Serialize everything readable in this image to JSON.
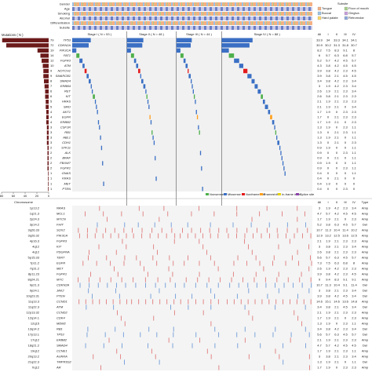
{
  "tracks": {
    "labels": [
      "Gender",
      "Age",
      "Smoking",
      "Alcohol",
      "Differentiation",
      "Subsite"
    ]
  },
  "subsite_legend": {
    "title": "Subsite",
    "items": [
      {
        "label": "Tongue",
        "color": "#f4b183"
      },
      {
        "label": "Floor of mouth",
        "color": "#a9d18e"
      },
      {
        "label": "Buccal",
        "color": "#9dc3e6"
      },
      {
        "label": "Gingiva",
        "color": "#c9a0dc"
      },
      {
        "label": "Hard palate",
        "color": "#ffd966"
      },
      {
        "label": "Retromolar",
        "color": "#8faadc"
      }
    ]
  },
  "mutations": {
    "title": "Mutations ( N )",
    "xlim": [
      0,
      80
    ],
    "xticks": [
      0,
      20,
      40,
      60,
      80
    ],
    "bar_color": "#6b1a1a",
    "stages": [
      {
        "label": "Stage I ( N = 53 )",
        "n": 53
      },
      {
        "label": "Stage II ( N = 48 )",
        "n": 48
      },
      {
        "label": "Stage III ( N = 44 )",
        "n": 44
      },
      {
        "label": "Stage IV ( N = 88 )",
        "n": 88
      }
    ],
    "columns": [
      "All",
      "I",
      "II",
      "III",
      "IV"
    ],
    "legend": [
      {
        "label": "Nonsense",
        "color": "#4daf4a"
      },
      {
        "label": "Missense",
        "color": "#3a6fc4"
      },
      {
        "label": "Nonframeshift",
        "color": "#e41a1c"
      },
      {
        "label": "Frameshift",
        "color": "#ff9f1c"
      },
      {
        "label": "In-frame indel",
        "color": "#e6d200"
      },
      {
        "label": "Splice site",
        "color": "#8e44ad"
      }
    ],
    "genes": [
      {
        "gene": "TP53",
        "count": 79,
        "color": "#3a6fc4",
        "stage_counts": [
          18,
          16,
          15,
          30
        ],
        "pct": [
          33.9,
          34.0,
          33.3,
          34.1,
          34.1
        ]
      },
      {
        "gene": "CDKN2A",
        "count": 72,
        "color": "#3a6fc4",
        "stage_counts": [
          16,
          15,
          14,
          27
        ],
        "pct": [
          30.9,
          30.2,
          31.3,
          31.8,
          30.7
        ]
      },
      {
        "gene": "PIK3CA",
        "count": 19,
        "color": "#3a6fc4",
        "stage_counts": [
          4,
          4,
          4,
          7
        ],
        "pct": [
          8.2,
          7.5,
          8.3,
          9.1,
          8.0
        ]
      },
      {
        "gene": "FAT1",
        "count": 14,
        "color": "#4daf4a",
        "stage_counts": [
          3,
          3,
          3,
          5
        ],
        "pct": [
          6.0,
          5.7,
          6.3,
          6.8,
          5.7
        ]
      },
      {
        "gene": "FGFR3",
        "count": 12,
        "color": "#3a6fc4",
        "stage_counts": [
          3,
          2,
          2,
          5
        ],
        "pct": [
          5.2,
          5.7,
          4.2,
          4.5,
          5.7
        ]
      },
      {
        "gene": "ATM",
        "count": 10,
        "color": "#3a6fc4",
        "stage_counts": [
          2,
          2,
          2,
          4
        ],
        "pct": [
          4.3,
          3.8,
          4.2,
          4.5,
          4.5
        ]
      },
      {
        "gene": "NOTCH1",
        "count": 9,
        "color": "#e41a1c",
        "stage_counts": [
          2,
          2,
          1,
          4
        ],
        "pct": [
          3.9,
          3.8,
          4.2,
          2.3,
          4.5
        ]
      },
      {
        "gene": "SMARCB1",
        "count": 9,
        "color": "#3a6fc4",
        "stage_counts": [
          2,
          1,
          2,
          4
        ],
        "pct": [
          3.9,
          3.8,
          2.1,
          4.5,
          4.5
        ]
      },
      {
        "gene": "SMAD4",
        "count": 8,
        "color": "#3a6fc4",
        "stage_counts": [
          2,
          2,
          1,
          3
        ],
        "pct": [
          3.4,
          3.8,
          4.2,
          2.3,
          3.4
        ]
      },
      {
        "gene": "ERBB4",
        "count": 7,
        "color": "#3a6fc4",
        "stage_counts": [
          1,
          2,
          1,
          3
        ],
        "pct": [
          3.0,
          1.9,
          4.2,
          2.3,
          3.4
        ]
      },
      {
        "gene": "RET",
        "count": 6,
        "color": "#3a6fc4",
        "stage_counts": [
          1,
          1,
          1,
          3
        ],
        "pct": [
          2.6,
          1.9,
          2.1,
          2.3,
          3.4
        ]
      },
      {
        "gene": "KIT",
        "count": 6,
        "color": "#4daf4a",
        "stage_counts": [
          2,
          1,
          1,
          2
        ],
        "pct": [
          2.6,
          3.8,
          2.1,
          2.3,
          2.3
        ]
      },
      {
        "gene": "HRAS",
        "count": 5,
        "color": "#3a6fc4",
        "stage_counts": [
          1,
          1,
          1,
          2
        ],
        "pct": [
          2.1,
          1.9,
          2.1,
          2.3,
          2.3
        ]
      },
      {
        "gene": "SMO",
        "count": 5,
        "color": "#3a6fc4",
        "stage_counts": [
          1,
          1,
          0,
          3
        ],
        "pct": [
          2.1,
          1.9,
          2.1,
          0,
          3.4
        ]
      },
      {
        "gene": "AKT1",
        "count": 4,
        "color": "#3a6fc4",
        "stage_counts": [
          1,
          0,
          1,
          2
        ],
        "pct": [
          1.7,
          1.9,
          0,
          2.3,
          2.3
        ]
      },
      {
        "gene": "EGFR",
        "count": 4,
        "color": "#ff9f1c",
        "stage_counts": [
          0,
          1,
          1,
          2
        ],
        "pct": [
          1.7,
          0,
          2.1,
          2.3,
          2.3
        ]
      },
      {
        "gene": "ERBB2",
        "count": 4,
        "color": "#3a6fc4",
        "stage_counts": [
          1,
          1,
          0,
          2
        ],
        "pct": [
          1.7,
          1.9,
          2.1,
          0,
          2.3
        ]
      },
      {
        "gene": "CSF1R",
        "count": 3,
        "color": "#3a6fc4",
        "stage_counts": [
          1,
          0,
          1,
          1
        ],
        "pct": [
          1.3,
          1.9,
          0,
          2.3,
          1.1
        ]
      },
      {
        "gene": "RB1",
        "count": 3,
        "color": "#4daf4a",
        "stage_counts": [
          0,
          1,
          1,
          1
        ],
        "pct": [
          1.3,
          0,
          2.1,
          2.3,
          1.1
        ]
      },
      {
        "gene": "ABL1",
        "count": 3,
        "color": "#3a6fc4",
        "stage_counts": [
          1,
          1,
          0,
          1
        ],
        "pct": [
          1.3,
          1.9,
          2.1,
          0,
          1.1
        ]
      },
      {
        "gene": "CDH1",
        "count": 3,
        "color": "#3a6fc4",
        "stage_counts": [
          0,
          1,
          0,
          2
        ],
        "pct": [
          1.3,
          0,
          2.1,
          0,
          2.3
        ]
      },
      {
        "gene": "STK11",
        "count": 2,
        "color": "#3a6fc4",
        "stage_counts": [
          1,
          0,
          0,
          1
        ],
        "pct": [
          0.9,
          1.9,
          0,
          0,
          1.1
        ]
      },
      {
        "gene": "ALK",
        "count": 2,
        "color": "#3a6fc4",
        "stage_counts": [
          0,
          0,
          1,
          1
        ],
        "pct": [
          0.9,
          0,
          0,
          2.3,
          1.1
        ]
      },
      {
        "gene": "BRAF",
        "count": 2,
        "color": "#3a6fc4",
        "stage_counts": [
          0,
          1,
          0,
          1
        ],
        "pct": [
          0.9,
          0,
          2.1,
          0,
          1.1
        ]
      },
      {
        "gene": "FBXW7",
        "count": 2,
        "color": "#3a6fc4",
        "stage_counts": [
          1,
          0,
          0,
          1
        ],
        "pct": [
          0.9,
          1.9,
          0,
          0,
          1.1
        ]
      },
      {
        "gene": "FGFR1",
        "count": 2,
        "color": "#3a6fc4",
        "stage_counts": [
          0,
          0,
          1,
          1
        ],
        "pct": [
          0.9,
          0,
          0,
          2.3,
          1.1
        ]
      },
      {
        "gene": "GNAS",
        "count": 1,
        "color": "#3a6fc4",
        "stage_counts": [
          0,
          0,
          0,
          1
        ],
        "pct": [
          0.4,
          0,
          0,
          0,
          1.1
        ]
      },
      {
        "gene": "KRAS",
        "count": 1,
        "color": "#3a6fc4",
        "stage_counts": [
          0,
          1,
          0,
          0
        ],
        "pct": [
          0.4,
          0,
          2.1,
          0,
          0
        ]
      },
      {
        "gene": "MET",
        "count": 1,
        "color": "#3a6fc4",
        "stage_counts": [
          1,
          0,
          0,
          0
        ],
        "pct": [
          0.4,
          1.9,
          0,
          0,
          0
        ]
      },
      {
        "gene": "PTEN",
        "count": 1,
        "color": "#3a6fc4",
        "stage_counts": [
          0,
          0,
          1,
          0
        ],
        "pct": [
          0.4,
          0,
          0,
          2.3,
          0
        ]
      }
    ]
  },
  "cnv": {
    "axis_label": "Chromosome",
    "columns": [
      "All",
      "I",
      "II",
      "III",
      "IV",
      "Type"
    ],
    "colors": {
      "Amp": "#e07b7b",
      "Del": "#6f9bd8"
    },
    "rows": [
      {
        "cytoband": "1p13.2",
        "gene": "NRAS",
        "type": "Amp",
        "stage_counts": [
          1,
          2,
          1,
          3
        ],
        "pct": [
          3.0,
          1.9,
          4.2,
          2.3,
          3.4
        ]
      },
      {
        "cytoband": "1q21.3",
        "gene": "MCL1",
        "type": "Amp",
        "stage_counts": [
          3,
          2,
          2,
          4
        ],
        "pct": [
          4.7,
          5.7,
          4.2,
          4.5,
          4.5
        ]
      },
      {
        "cytoband": "2p24.3",
        "gene": "MYCN",
        "type": "Amp",
        "stage_counts": [
          1,
          1,
          0,
          2
        ],
        "pct": [
          1.7,
          1.9,
          2.1,
          0,
          2.3
        ]
      },
      {
        "cytoband": "3p14.2",
        "gene": "FHIT",
        "type": "Del",
        "stage_counts": [
          2,
          3,
          2,
          5
        ],
        "pct": [
          5.2,
          3.8,
          6.3,
          4.5,
          5.7
        ]
      },
      {
        "cytoband": "3q26.33",
        "gene": "SOX2",
        "type": "Amp",
        "stage_counts": [
          6,
          5,
          5,
          9
        ],
        "pct": [
          10.7,
          11.3,
          10.4,
          11.4,
          10.2
        ]
      },
      {
        "cytoband": "3q26.32",
        "gene": "PIK3CA",
        "type": "Amp",
        "stage_counts": [
          7,
          6,
          6,
          11
        ],
        "pct": [
          12.9,
          13.2,
          12.5,
          13.6,
          12.5
        ]
      },
      {
        "cytoband": "4p16.3",
        "gene": "FGFR3",
        "type": "Amp",
        "stage_counts": [
          1,
          1,
          1,
          2
        ],
        "pct": [
          2.1,
          1.9,
          2.1,
          2.3,
          2.3
        ]
      },
      {
        "cytoband": "4q12",
        "gene": "KIT",
        "type": "Amp",
        "stage_counts": [
          2,
          1,
          1,
          3
        ],
        "pct": [
          3.0,
          3.8,
          2.1,
          2.3,
          3.4
        ]
      },
      {
        "cytoband": "4q12",
        "gene": "PDGFRA",
        "type": "Amp",
        "stage_counts": [
          2,
          1,
          1,
          2
        ],
        "pct": [
          2.6,
          3.8,
          2.1,
          2.3,
          2.3
        ]
      },
      {
        "cytoband": "5p15.33",
        "gene": "TERT",
        "type": "Amp",
        "stage_counts": [
          3,
          3,
          2,
          5
        ],
        "pct": [
          5.6,
          5.7,
          6.3,
          4.5,
          5.7
        ]
      },
      {
        "cytoband": "7p11.2",
        "gene": "EGFR",
        "type": "Amp",
        "stage_counts": [
          4,
          3,
          3,
          7
        ],
        "pct": [
          7.3,
          7.5,
          6.3,
          6.8,
          8.0
        ]
      },
      {
        "cytoband": "7q31.2",
        "gene": "MET",
        "type": "Amp",
        "stage_counts": [
          1,
          2,
          1,
          2
        ],
        "pct": [
          2.6,
          1.9,
          4.2,
          2.3,
          2.3
        ]
      },
      {
        "cytoband": "8p11.23",
        "gene": "FGFR1",
        "type": "Amp",
        "stage_counts": [
          2,
          2,
          1,
          4
        ],
        "pct": [
          3.9,
          3.8,
          4.2,
          2.3,
          4.5
        ]
      },
      {
        "cytoband": "8q24.21",
        "gene": "MYC",
        "type": "Amp",
        "stage_counts": [
          5,
          4,
          4,
          8
        ],
        "pct": [
          9.0,
          9.4,
          8.3,
          9.1,
          9.1
        ]
      },
      {
        "cytoband": "9p21.3",
        "gene": "CDKN2A",
        "type": "Del",
        "stage_counts": [
          6,
          5,
          4,
          10
        ],
        "pct": [
          10.7,
          11.3,
          10.4,
          9.1,
          11.4
        ]
      },
      {
        "cytoband": "9p24.1",
        "gene": "JAK2",
        "type": "Del",
        "stage_counts": [
          2,
          1,
          1,
          3
        ],
        "pct": [
          3.0,
          3.8,
          2.1,
          2.3,
          3.4
        ]
      },
      {
        "cytoband": "10q23.31",
        "gene": "PTEN",
        "type": "Del",
        "stage_counts": [
          2,
          2,
          2,
          3
        ],
        "pct": [
          3.9,
          3.8,
          4.2,
          4.5,
          3.4
        ]
      },
      {
        "cytoband": "11q13.3",
        "gene": "CCND1",
        "type": "Amp",
        "stage_counts": [
          8,
          7,
          6,
          13
        ],
        "pct": [
          14.6,
          15.1,
          14.6,
          13.6,
          14.8
        ]
      },
      {
        "cytoband": "11q22.3",
        "gene": "ATM",
        "type": "Del",
        "stage_counts": [
          2,
          1,
          2,
          3
        ],
        "pct": [
          3.4,
          3.8,
          2.1,
          4.5,
          3.4
        ]
      },
      {
        "cytoband": "12p13.32",
        "gene": "CCND2",
        "type": "Amp",
        "stage_counts": [
          1,
          1,
          1,
          2
        ],
        "pct": [
          2.1,
          1.9,
          2.1,
          2.3,
          2.3
        ]
      },
      {
        "cytoband": "12q14.1",
        "gene": "CDK4",
        "type": "Amp",
        "stage_counts": [
          1,
          1,
          0,
          2
        ],
        "pct": [
          1.7,
          1.9,
          2.1,
          0,
          2.3
        ]
      },
      {
        "cytoband": "12q15",
        "gene": "MDM2",
        "type": "Amp",
        "stage_counts": [
          1,
          0,
          1,
          1
        ],
        "pct": [
          1.3,
          1.9,
          0,
          2.3,
          1.1
        ]
      },
      {
        "cytoband": "13q14.2",
        "gene": "RB1",
        "type": "Del",
        "stage_counts": [
          2,
          2,
          1,
          3
        ],
        "pct": [
          3.4,
          3.8,
          4.2,
          2.3,
          3.4
        ]
      },
      {
        "cytoband": "17p13.1",
        "gene": "TP53",
        "type": "Del",
        "stage_counts": [
          3,
          3,
          2,
          5
        ],
        "pct": [
          5.6,
          5.7,
          6.3,
          4.5,
          5.7
        ]
      },
      {
        "cytoband": "17q12",
        "gene": "ERBB2",
        "type": "Amp",
        "stage_counts": [
          1,
          1,
          1,
          2
        ],
        "pct": [
          2.1,
          1.9,
          2.1,
          2.3,
          2.3
        ]
      },
      {
        "cytoband": "18q21.2",
        "gene": "SMAD4",
        "type": "Del",
        "stage_counts": [
          3,
          2,
          2,
          4
        ],
        "pct": [
          4.7,
          5.7,
          4.2,
          4.5,
          4.5
        ]
      },
      {
        "cytoband": "19q12",
        "gene": "CCNE1",
        "type": "Amp",
        "stage_counts": [
          1,
          1,
          1,
          1
        ],
        "pct": [
          1.7,
          1.9,
          2.1,
          2.3,
          1.1
        ]
      },
      {
        "cytoband": "20q13.2",
        "gene": "AURKA",
        "type": "Amp",
        "stage_counts": [
          2,
          1,
          1,
          3
        ],
        "pct": [
          3.0,
          3.8,
          2.1,
          2.3,
          3.4
        ]
      },
      {
        "cytoband": "21q22.3",
        "gene": "TMPRSS2",
        "type": "Del",
        "stage_counts": [
          1,
          1,
          0,
          1
        ],
        "pct": [
          1.3,
          1.9,
          2.1,
          0,
          1.1
        ]
      },
      {
        "cytoband": "Xq12",
        "gene": "AR",
        "type": "Amp",
        "stage_counts": [
          1,
          0,
          1,
          2
        ],
        "pct": [
          1.7,
          1.9,
          0,
          2.3,
          2.3
        ]
      }
    ]
  }
}
